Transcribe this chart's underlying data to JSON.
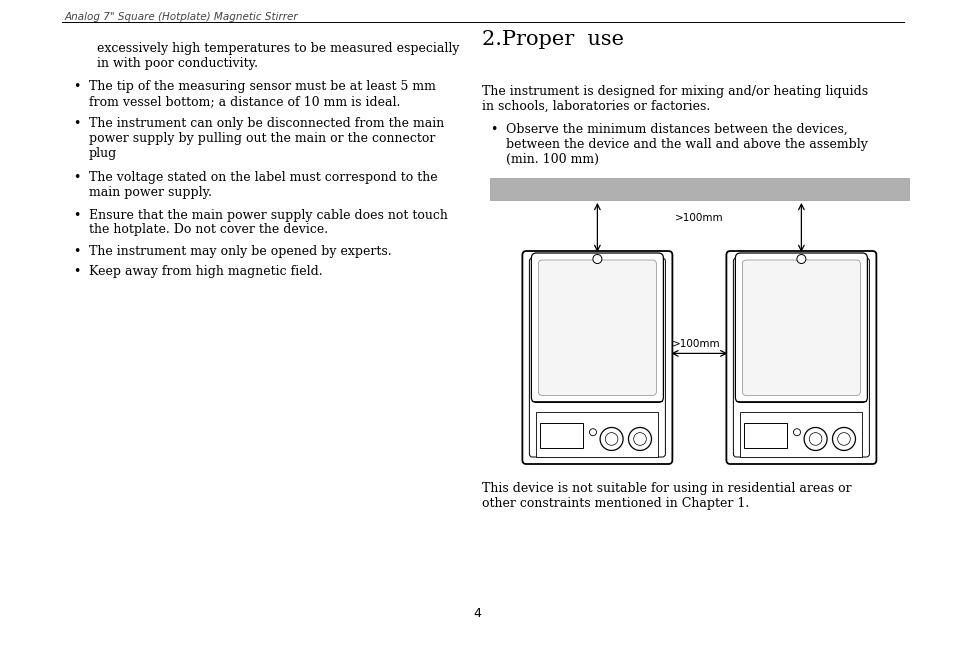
{
  "page_width": 9.54,
  "page_height": 6.45,
  "bg_color": "#ffffff",
  "header_text": "Analog 7\" Square (Hotplate) Magnetic Stirrer",
  "section_title": "2.Proper  use",
  "section_title_fontsize": 15,
  "left_text_top": "excessively high temperatures to be measured especially\nin with poor conductivity.",
  "bullet_items_left": [
    "The tip of the measuring sensor must be at least 5 mm\nfrom vessel bottom; a distance of 10 mm is ideal.",
    "The instrument can only be disconnected from the main\npower supply by pulling out the main or the connector\nplug",
    "The voltage stated on the label must correspond to the\nmain power supply.",
    "Ensure that the main power supply cable does not touch\nthe hotplate. Do not cover the device.",
    "The instrument may only be opened by experts.",
    "Keep away from high magnetic field."
  ],
  "right_intro": "The instrument is designed for mixing and/or heating liquids\nin schools, laboratories or factories.",
  "bullet_items_right": [
    "Observe the minimum distances between the devices,\nbetween the device and the wall and above the assembly\n(min. 100 mm)"
  ],
  "bottom_text": "This device is not suitable for using in residential areas or\nother constraints mentioned in Chapter 1.",
  "page_number": "4",
  "font_size_body": 9.0,
  "font_size_header": 7.5,
  "wall_bar_color": "#b0b0b0",
  "label_100mm_top": ">100mm",
  "label_100mm_side": ">100mm"
}
